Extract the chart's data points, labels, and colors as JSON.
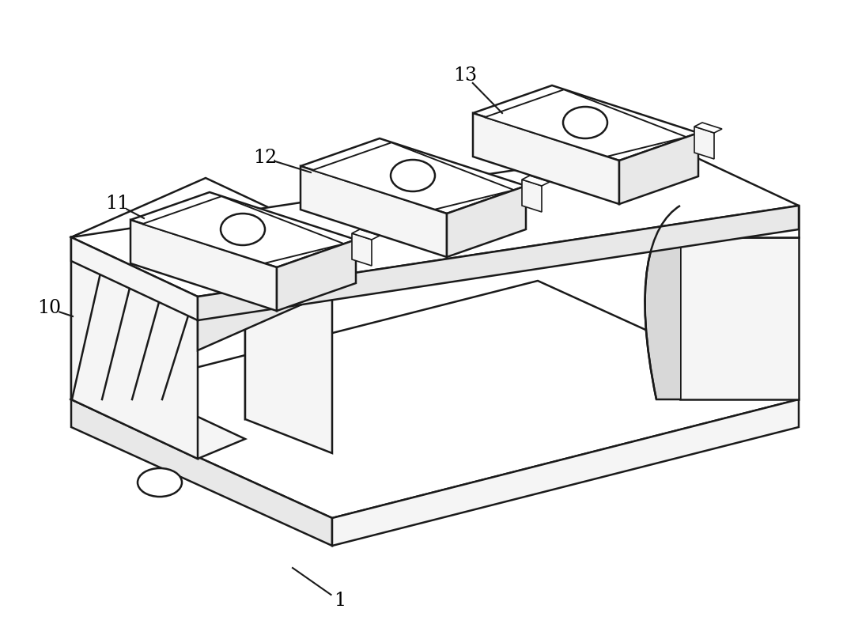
{
  "bg_color": "#ffffff",
  "line_color": "#1a1a1a",
  "line_width": 1.8,
  "fig_width": 10.9,
  "fig_height": 8.13,
  "annotation_fontsize": 17
}
